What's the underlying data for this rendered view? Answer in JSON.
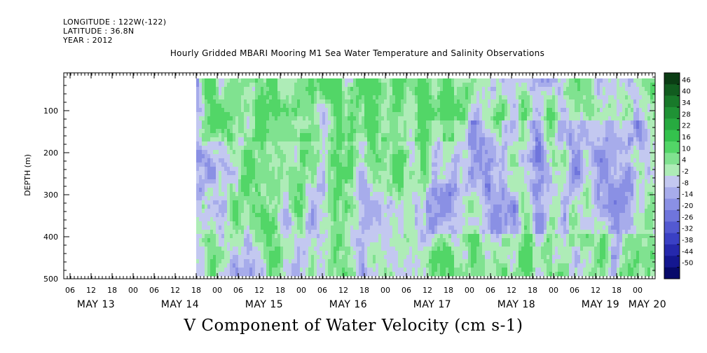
{
  "header": {
    "longitude": "LONGITUDE : 122W(-122)",
    "latitude": "LATITUDE : 36.8N",
    "year": "YEAR : 2012"
  },
  "chart_data": {
    "type": "heatmap",
    "title": "Hourly Gridded MBARI Mooring M1 Sea Water Temperature and Salinity Observations",
    "footer_label": "V Component of Water Velocity (cm s-1)",
    "ylabel": "DEPTH (m)",
    "y_ticks": [
      100,
      200,
      300,
      400,
      500
    ],
    "ylim": [
      10,
      500
    ],
    "x_hour_ticks": [
      "06",
      "12",
      "18",
      "00",
      "06",
      "12",
      "18",
      "00",
      "06",
      "12",
      "18",
      "00",
      "06",
      "12",
      "18",
      "00",
      "06",
      "12",
      "18",
      "00",
      "06",
      "12",
      "18",
      "00",
      "06",
      "12",
      "18",
      "00",
      "06",
      "12",
      "18",
      "00"
    ],
    "x_day_labels": [
      "MAY 13",
      "MAY 14",
      "MAY 15",
      "MAY 16",
      "MAY 17",
      "MAY 18",
      "MAY 19",
      "MAY 20"
    ],
    "colorbar_labels": [
      "46",
      "40",
      "34",
      "28",
      "22",
      "16",
      "10",
      "4",
      "-2",
      "-8",
      "-14",
      "-20",
      "-26",
      "-32",
      "-38",
      "-44",
      "-50"
    ],
    "colorbar_colors": [
      "#0b3d14",
      "#115c1f",
      "#18792a",
      "#1f9235",
      "#27aa40",
      "#34c24d",
      "#52d667",
      "#80e290",
      "#aeecb7",
      "#c3c8f0",
      "#a7aceb",
      "#8a90e4",
      "#6f75dc",
      "#5359d1",
      "#3a40c4",
      "#2528ac",
      "#141790",
      "#070a6a"
    ],
    "data_start_hour": 42,
    "data_end_hour": 204,
    "patterns_note_free": true
  }
}
